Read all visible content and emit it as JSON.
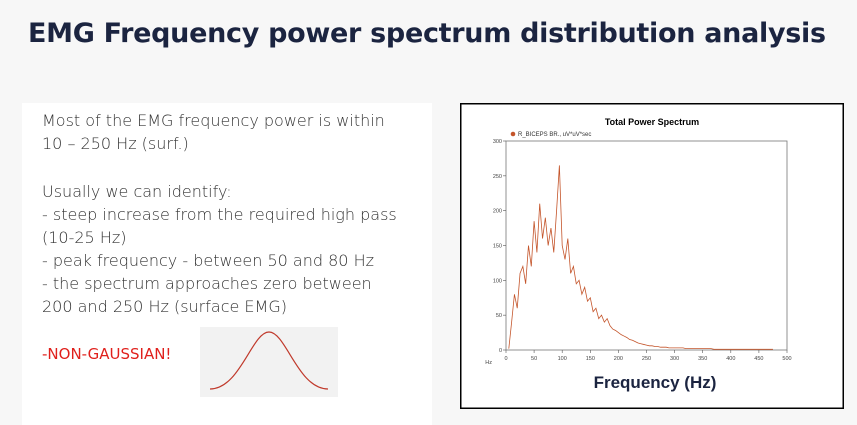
{
  "header": {
    "title": "EMG Frequency power spectrum distribution analysis"
  },
  "left_panel": {
    "lines": [
      "Most of the EMG frequency power is within",
      "10 – 250 Hz (surf.)",
      "Usually we can identify:",
      "- steep increase from the required high pass",
      "(10-25 Hz)",
      "-  peak frequency - between 50 and 80 Hz",
      "- the spectrum approaches zero between",
      "200 and 250 Hz (surface EMG)"
    ],
    "highlight": "-NON-GAUSSIAN!"
  },
  "chart": {
    "type": "line",
    "title": "Total Power Spectrum",
    "legend": "R_BICEPS BR., uV*uV*sec",
    "color": "#c4552b",
    "x_label": "Frequency (Hz)",
    "x_unit": "Hz",
    "xlim": [
      0,
      500
    ],
    "xticks": [
      0,
      50,
      100,
      150,
      200,
      250,
      300,
      350,
      400,
      450,
      500
    ],
    "ylim": [
      0,
      300
    ],
    "yticks": [
      0,
      50,
      100,
      150,
      200,
      250,
      300
    ],
    "x": [
      5,
      10,
      15,
      20,
      25,
      30,
      35,
      40,
      45,
      50,
      55,
      60,
      65,
      70,
      75,
      80,
      85,
      90,
      95,
      100,
      105,
      110,
      115,
      120,
      125,
      130,
      135,
      140,
      145,
      150,
      155,
      160,
      165,
      170,
      175,
      180,
      185,
      190,
      195,
      200,
      205,
      210,
      215,
      220,
      225,
      230,
      235,
      240,
      245,
      250,
      255,
      260,
      265,
      270,
      275,
      280,
      285,
      290,
      295,
      300,
      305,
      310,
      315,
      320,
      325,
      330,
      335,
      340,
      345,
      350,
      355,
      360,
      365,
      370,
      375,
      380,
      385,
      390,
      395,
      400,
      405,
      410,
      415,
      420,
      425,
      430,
      435,
      440,
      445,
      450,
      455,
      460,
      465,
      470,
      475
    ],
    "values": [
      2,
      40,
      80,
      60,
      110,
      120,
      95,
      150,
      120,
      185,
      140,
      210,
      160,
      190,
      150,
      175,
      140,
      200,
      265,
      150,
      130,
      160,
      110,
      120,
      95,
      100,
      80,
      90,
      70,
      75,
      55,
      60,
      45,
      50,
      40,
      45,
      35,
      30,
      28,
      25,
      22,
      20,
      18,
      15,
      14,
      12,
      10,
      9,
      8,
      7,
      6,
      6,
      5,
      5,
      4,
      4,
      4,
      3,
      3,
      3,
      3,
      3,
      3,
      2,
      2,
      2,
      2,
      2,
      2,
      2,
      2,
      2,
      2,
      1,
      1,
      1,
      1,
      1,
      1,
      1,
      1,
      1,
      1,
      1,
      1,
      1,
      1,
      1,
      1,
      1,
      1,
      1,
      1,
      1,
      1
    ]
  }
}
